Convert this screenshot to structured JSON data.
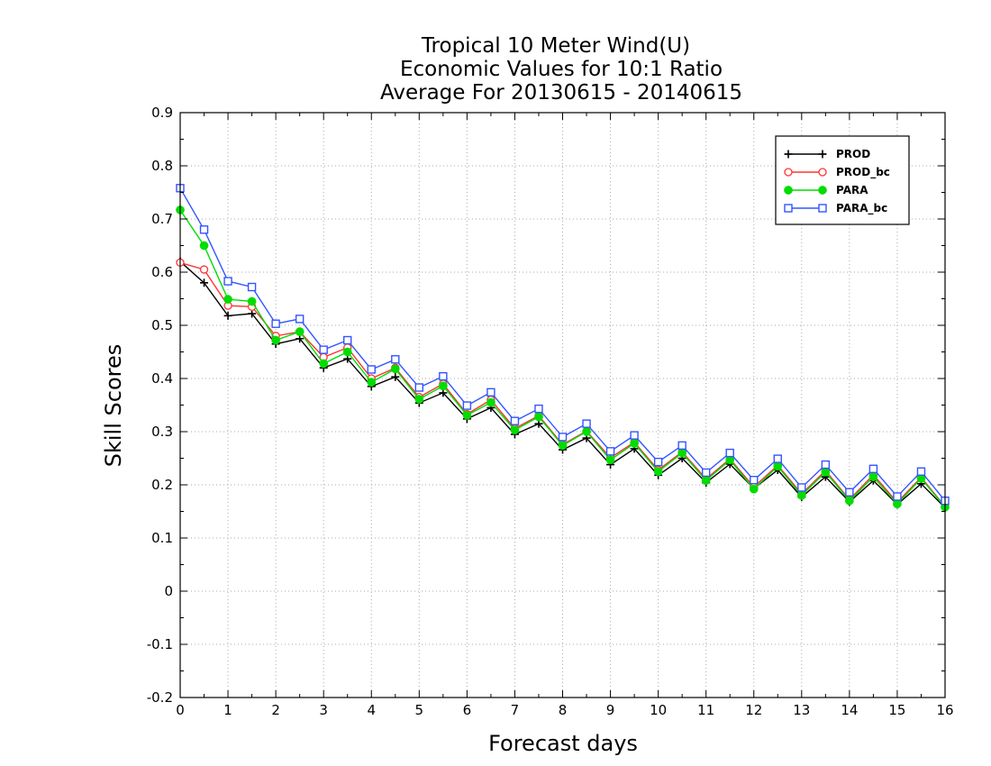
{
  "chart_data": {
    "type": "line",
    "title_lines": [
      "Tropical 10 Meter Wind(U)",
      "Economic Values for 10:1 Ratio",
      "Average For 20130615 - 20140615"
    ],
    "xlabel": "Forecast days",
    "ylabel": "Skill Scores",
    "xlim": [
      0,
      16
    ],
    "ylim": [
      -0.2,
      0.9
    ],
    "x_ticks": [
      "0",
      "1",
      "2",
      "3",
      "4",
      "5",
      "6",
      "7",
      "8",
      "9",
      "10",
      "11",
      "12",
      "13",
      "14",
      "15",
      "16"
    ],
    "y_ticks": [
      "-0.2",
      "-0.1",
      "0",
      "0.1",
      "0.2",
      "0.3",
      "0.4",
      "0.5",
      "0.6",
      "0.7",
      "0.8",
      "0.9"
    ],
    "grid": true,
    "legend_position": "top-right",
    "x": [
      0,
      0.5,
      1,
      1.5,
      2,
      2.5,
      3,
      3.5,
      4,
      4.5,
      5,
      5.5,
      6,
      6.5,
      7,
      7.5,
      8,
      8.5,
      9,
      9.5,
      10,
      10.5,
      11,
      11.5,
      12,
      12.5,
      13,
      13.5,
      14,
      14.5,
      15,
      15.5,
      16
    ],
    "series": [
      {
        "name": "PROD",
        "color": "#000000",
        "marker": "plus",
        "values": [
          0.62,
          0.58,
          0.518,
          0.522,
          0.465,
          0.475,
          0.42,
          0.437,
          0.385,
          0.403,
          0.354,
          0.373,
          0.324,
          0.345,
          0.295,
          0.315,
          0.266,
          0.288,
          0.238,
          0.268,
          0.218,
          0.25,
          0.204,
          0.239,
          0.193,
          0.228,
          0.177,
          0.215,
          0.168,
          0.208,
          0.163,
          0.202,
          0.157
        ]
      },
      {
        "name": "PROD_bc",
        "color": "#ff3333",
        "marker": "circle-open",
        "values": [
          0.618,
          0.605,
          0.537,
          0.535,
          0.48,
          0.488,
          0.44,
          0.458,
          0.4,
          0.42,
          0.365,
          0.39,
          0.333,
          0.36,
          0.306,
          0.33,
          0.276,
          0.301,
          0.251,
          0.28,
          0.228,
          0.262,
          0.211,
          0.249,
          0.196,
          0.237,
          0.183,
          0.227,
          0.172,
          0.219,
          0.167,
          0.214,
          0.159
        ]
      },
      {
        "name": "PARA",
        "color": "#00dd00",
        "marker": "circle-filled",
        "values": [
          0.717,
          0.65,
          0.549,
          0.545,
          0.472,
          0.488,
          0.428,
          0.45,
          0.393,
          0.418,
          0.361,
          0.386,
          0.331,
          0.355,
          0.303,
          0.328,
          0.274,
          0.3,
          0.247,
          0.278,
          0.225,
          0.26,
          0.208,
          0.247,
          0.192,
          0.235,
          0.18,
          0.224,
          0.17,
          0.215,
          0.164,
          0.212,
          0.158
        ]
      },
      {
        "name": "PARA_bc",
        "color": "#3355ff",
        "marker": "square-open",
        "values": [
          0.758,
          0.68,
          0.583,
          0.572,
          0.503,
          0.512,
          0.454,
          0.472,
          0.417,
          0.436,
          0.383,
          0.404,
          0.349,
          0.374,
          0.32,
          0.343,
          0.29,
          0.315,
          0.263,
          0.293,
          0.243,
          0.274,
          0.223,
          0.26,
          0.209,
          0.249,
          0.195,
          0.238,
          0.186,
          0.23,
          0.178,
          0.225,
          0.17
        ]
      }
    ]
  }
}
